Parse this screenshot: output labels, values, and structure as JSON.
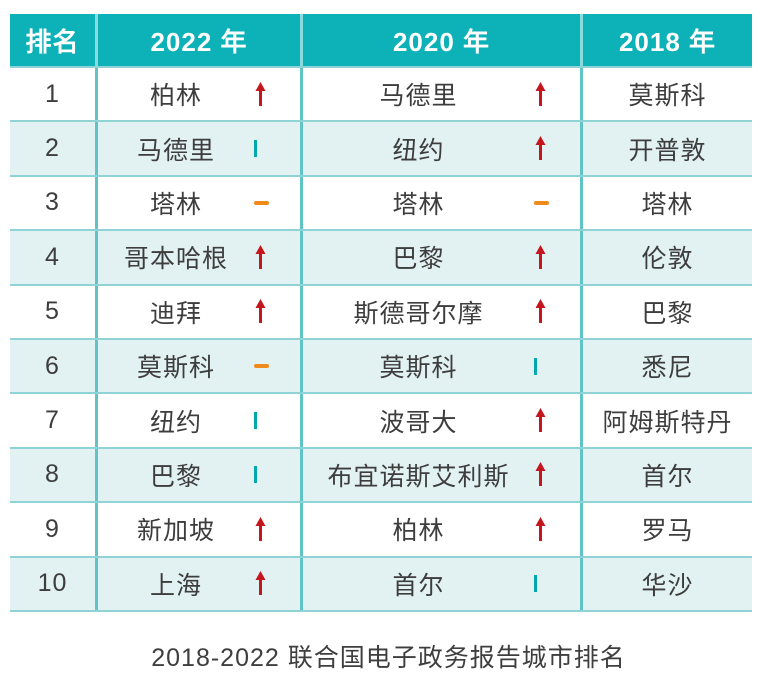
{
  "caption": "2018-2022 联合国电子政务报告城市排名",
  "colors": {
    "header_teal": "#0cb2b7",
    "header_separator": "#8adbde",
    "grid_horizontal": "#90d3d6",
    "grid_vertical": "#5fc3c8",
    "row_alternate": "#e2f1f2",
    "trend_up_red": "#c4161c",
    "trend_down_teal": "#00a8ae",
    "trend_same_orange": "#f18a1d",
    "text": "#3d3d3d"
  },
  "icons": {
    "up": "up-arrow-icon",
    "down": "down-bar-icon",
    "same": "unchanged-dash-icon"
  },
  "table": {
    "columns": [
      "排名",
      "2022 年",
      "2020 年",
      "2018 年"
    ],
    "rows": [
      {
        "rank": "1",
        "y2022": {
          "city": "柏林",
          "trend": "up"
        },
        "y2020": {
          "city": "马德里",
          "trend": "up"
        },
        "y2018": {
          "city": "莫斯科"
        }
      },
      {
        "rank": "2",
        "y2022": {
          "city": "马德里",
          "trend": "down"
        },
        "y2020": {
          "city": "纽约",
          "trend": "up"
        },
        "y2018": {
          "city": "开普敦"
        }
      },
      {
        "rank": "3",
        "y2022": {
          "city": "塔林",
          "trend": "same"
        },
        "y2020": {
          "city": "塔林",
          "trend": "same"
        },
        "y2018": {
          "city": "塔林"
        }
      },
      {
        "rank": "4",
        "y2022": {
          "city": "哥本哈根",
          "trend": "up"
        },
        "y2020": {
          "city": "巴黎",
          "trend": "up"
        },
        "y2018": {
          "city": "伦敦"
        }
      },
      {
        "rank": "5",
        "y2022": {
          "city": "迪拜",
          "trend": "up"
        },
        "y2020": {
          "city": "斯德哥尔摩",
          "trend": "up"
        },
        "y2018": {
          "city": "巴黎"
        }
      },
      {
        "rank": "6",
        "y2022": {
          "city": "莫斯科",
          "trend": "same"
        },
        "y2020": {
          "city": "莫斯科",
          "trend": "down"
        },
        "y2018": {
          "city": "悉尼"
        }
      },
      {
        "rank": "7",
        "y2022": {
          "city": "纽约",
          "trend": "down"
        },
        "y2020": {
          "city": "波哥大",
          "trend": "up"
        },
        "y2018": {
          "city": "阿姆斯特丹"
        }
      },
      {
        "rank": "8",
        "y2022": {
          "city": "巴黎",
          "trend": "down"
        },
        "y2020": {
          "city": "布宜诺斯艾利斯",
          "trend": "up"
        },
        "y2018": {
          "city": "首尔"
        }
      },
      {
        "rank": "9",
        "y2022": {
          "city": "新加坡",
          "trend": "up"
        },
        "y2020": {
          "city": "柏林",
          "trend": "up"
        },
        "y2018": {
          "city": "罗马"
        }
      },
      {
        "rank": "10",
        "y2022": {
          "city": "上海",
          "trend": "up"
        },
        "y2020": {
          "city": "首尔",
          "trend": "down"
        },
        "y2018": {
          "city": "华沙"
        }
      }
    ]
  }
}
